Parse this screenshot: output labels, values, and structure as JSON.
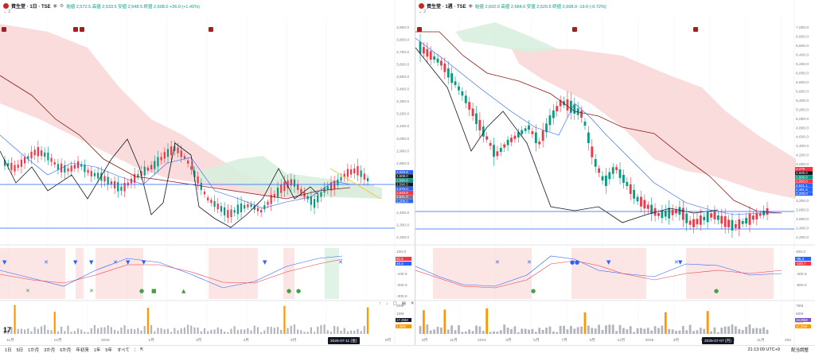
{
  "left": {
    "title": "資生堂 · 1日 · TSE",
    "ohlc": "始値 2,572.5  高値 2,633.5  安値 2,548.5  終値 2,608.0  +36.0 (+1.41%)",
    "indicator_count": "2",
    "price_ticks": [
      "3,900.0",
      "3,800.0",
      "3,700.0",
      "3,600.0",
      "3,500.0",
      "3,400.0",
      "3,300.0",
      "3,200.0",
      "3,100.0",
      "3,000.0",
      "2,900.0",
      "2,800.0",
      "2,700.0",
      "2,600.0",
      "2,500.0",
      "2,400.0",
      "2,300.0",
      "2,200.0"
    ],
    "price_tags": [
      {
        "label": "2,633.8",
        "color": "#2962ff"
      },
      {
        "label": "2,608.0",
        "color": "#131722"
      },
      {
        "label": "2,590.8",
        "color": "#089981"
      },
      {
        "label": "2,590.5",
        "color": "#131722"
      },
      {
        "label": "2,576.0",
        "color": "#2962ff"
      },
      {
        "label": "2,548.8",
        "color": "#f23645"
      },
      {
        "label": "2,541.0",
        "color": "#787b86"
      },
      {
        "label": "2,209.0",
        "color": "#2962ff"
      }
    ],
    "osc_ticks": [
      "100.0",
      "0.0",
      "-100.0",
      "-200.0",
      "-300.0"
    ],
    "osc_tags": [
      {
        "label": "82.9",
        "color": "#f23645"
      },
      {
        "label": "45.3",
        "color": "#2962ff"
      }
    ],
    "vol_ticks": [
      "20M",
      "10M",
      "5M"
    ],
    "vol_tags": [
      {
        "label": "17.25M",
        "color": "#131722"
      },
      {
        "label": "1.36M",
        "color": "#ff9800"
      }
    ],
    "time_labels": [
      "11月",
      "12月",
      "2025",
      "2月",
      "3月",
      "4月",
      "5月",
      "6月",
      "8月"
    ],
    "date_badge": "2025-07-11 (金)"
  },
  "right": {
    "title": "資生堂 · 1週 · TSE",
    "ohlc": "始値 2,602.0  高値 2,684.0  安値 2,520.5  終値 2,608.0  -19.0 (-0.72%)",
    "indicator_count": "2",
    "price_ticks": [
      "7,000.0",
      "6,800.0",
      "6,600.0",
      "6,400.0",
      "6,200.0",
      "6,000.0",
      "5,800.0",
      "5,600.0",
      "5,400.0",
      "5,200.0",
      "5,000.0",
      "4,800.0",
      "4,600.0",
      "4,400.0",
      "4,200.0",
      "4,000.0",
      "3,800.0",
      "3,600.0",
      "3,400.0",
      "3,200.0",
      "3,000.0",
      "2,800.0",
      "2,400.0",
      "2,200.0"
    ],
    "price_tags": [
      {
        "label": "3,478",
        "color": "#f23645"
      },
      {
        "label": "2,608.0",
        "color": "#131722"
      },
      {
        "label": "2,608.0",
        "color": "#089981"
      },
      {
        "label": "2,583.0",
        "color": "#f23645"
      },
      {
        "label": "2,531.1",
        "color": "#2962ff"
      },
      {
        "label": "2,481.5",
        "color": "#2962ff"
      },
      {
        "label": "2,209.0",
        "color": "#2962ff"
      }
    ],
    "osc_ticks": [
      "400.0",
      "0.0",
      "-400.0",
      "-800.0"
    ],
    "osc_tags": [
      {
        "label": "-85.4",
        "color": "#2962ff"
      },
      {
        "label": "-100.7",
        "color": "#f23645"
      }
    ],
    "vol_ticks": [
      "75M",
      "50M",
      "25M"
    ],
    "vol_tags": [
      {
        "label": "16.85M",
        "color": "#7e57c2"
      },
      {
        "label": "11.25M",
        "color": "#ff9800"
      }
    ],
    "time_labels": [
      "9月",
      "11月",
      "2024",
      "3月",
      "5月",
      "7月",
      "9月",
      "11月",
      "2025",
      "3月",
      "5月",
      "9月",
      "11月",
      "202"
    ],
    "date_badge": "2025-07-07 (月)"
  },
  "bottom_bar": {
    "ranges": [
      "1日",
      "5日",
      "1か月",
      "3か月",
      "6か月",
      "年初来",
      "1年",
      "5年",
      "すべて"
    ],
    "clock": "21:13:09 UTC+9",
    "adjust_label": "配当調整"
  },
  "colors": {
    "up": "#089981",
    "down": "#f23645",
    "kumo_red": "#f8d0d0",
    "kumo_green": "#d6eedd",
    "ma_blue": "#2962ff",
    "ma_brown": "#8b1a1a"
  }
}
